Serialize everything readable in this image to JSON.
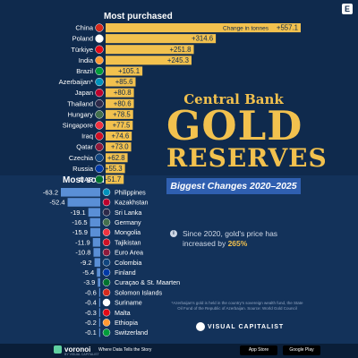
{
  "logo": {
    "letter": "E"
  },
  "headings": {
    "most_purchased": "Most purchased",
    "most_sold": "Most sold"
  },
  "title": {
    "line1": "Central Bank",
    "line2": "GOLD",
    "line3": "RESERVES"
  },
  "subtitle": "Biggest Changes 2020–2025",
  "note": {
    "prefix": "Since 2020, gold's price has increased by",
    "highlight": "265%"
  },
  "footnote": "*Azerbaijan's gold is held in the country's sovereign wealth fund, the State Oil Fund of the Republic of Azerbaijan. Source: World Gold Council",
  "brand": "VISUAL CAPITALIST",
  "footer": {
    "voronoi": "voronoi",
    "voronoi_by": "BY VISUAL CAPITALIST",
    "tagline": "Where Data Tells the Story",
    "app_store": "App Store",
    "google_play": "Google Play"
  },
  "colors": {
    "background": "#0f2a4d",
    "purchase_bar": "#f2c14e",
    "sold_bar": "#5a8fd6",
    "title_gold": "#f2c14e"
  },
  "chart_data": [
    {
      "type": "bar",
      "orientation": "horizontal",
      "title": "Most purchased",
      "unit_label": "Change in tonnes",
      "categories": [
        "China",
        "Poland",
        "Türkiye",
        "India",
        "Brazil",
        "Azerbaijan*",
        "Japan",
        "Thailand",
        "Hungary",
        "Singapore",
        "Iraq",
        "Qatar",
        "Czechia",
        "Russia",
        "UAE"
      ],
      "values": [
        557.1,
        314.6,
        251.8,
        245.3,
        105.1,
        85.6,
        80.8,
        80.6,
        78.5,
        77.5,
        74.6,
        73.0,
        62.8,
        55.3,
        51.7
      ],
      "labels": [
        "+557.1",
        "+314.6",
        "+251.8",
        "+245.3",
        "+105.1",
        "+85.6",
        "+80.8",
        "+80.6",
        "+78.5",
        "+77.5",
        "+74.6",
        "+73.0",
        "+62.8",
        "+55.3",
        "+51.7"
      ]
    },
    {
      "type": "bar",
      "orientation": "horizontal",
      "title": "Most sold",
      "categories": [
        "Philippines",
        "Kazakhstan",
        "Sri Lanka",
        "Germany",
        "Mongolia",
        "Tajikistan",
        "Euro Area",
        "Colombia",
        "Finland",
        "Curaçao & St. Maarten",
        "Solomon Islands",
        "Suriname",
        "Malta",
        "Ethiopia",
        "Switzerland"
      ],
      "values": [
        -63.2,
        -52.4,
        -19.1,
        -16.5,
        -15.9,
        -11.9,
        -10.8,
        -9.2,
        -5.4,
        -3.9,
        -0.6,
        -0.4,
        -0.3,
        -0.2,
        -0.1
      ],
      "labels": [
        "-63.2",
        "-52.4",
        "-19.1",
        "-16.5",
        "-15.9",
        "-11.9",
        "-10.8",
        "-9.2",
        "-5.4",
        "-3.9",
        "-0.6",
        "-0.4",
        "-0.3",
        "-0.2",
        "-0.1"
      ]
    }
  ]
}
